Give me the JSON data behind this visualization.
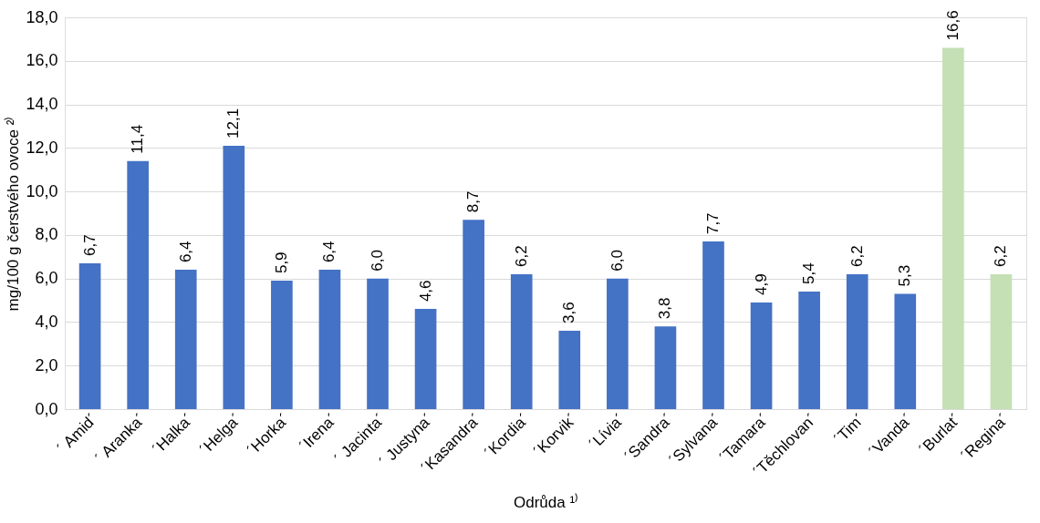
{
  "chart_data": {
    "type": "bar",
    "xlabel": "Odrůda ¹⁾",
    "ylabel": "mg/100 g čerstvého ovoce ²⁾",
    "categories": [
      "´ Amid´",
      "´ Aranka´",
      "´Halka´",
      "´Helga´",
      "´Horka´",
      "´Irena´",
      "´ Jacinta´",
      "´ Justyna´",
      "´Kasandra´",
      "´Kordia´",
      "´Korvik´",
      "´Lívia´",
      "´Sandra´",
      "´Sylvana´",
      "´Tamara´",
      "´Těchlovan´",
      "´Tim´",
      "´Vanda´",
      "´Burlat´",
      "´Regina´"
    ],
    "values": [
      6.7,
      11.4,
      6.4,
      12.1,
      5.9,
      6.4,
      6.0,
      4.6,
      8.7,
      6.2,
      3.6,
      6.0,
      3.8,
      7.7,
      4.9,
      5.4,
      6.2,
      5.3,
      16.6,
      6.2
    ],
    "value_labels": [
      "6,7",
      "11,4",
      "6,4",
      "12,1",
      "5,9",
      "6,4",
      "6,0",
      "4,6",
      "8,7",
      "6,2",
      "3,6",
      "6,0",
      "3,8",
      "7,7",
      "4,9",
      "5,4",
      "6,2",
      "5,3",
      "16,6",
      "6,2"
    ],
    "colors": [
      "#4472c4",
      "#4472c4",
      "#4472c4",
      "#4472c4",
      "#4472c4",
      "#4472c4",
      "#4472c4",
      "#4472c4",
      "#4472c4",
      "#4472c4",
      "#4472c4",
      "#4472c4",
      "#4472c4",
      "#4472c4",
      "#4472c4",
      "#4472c4",
      "#4472c4",
      "#4472c4",
      "#c5e0b4",
      "#c5e0b4"
    ],
    "ylim": [
      0,
      18
    ],
    "yticks": [
      {
        "value": 0,
        "label": "0,0"
      },
      {
        "value": 2,
        "label": "2,0"
      },
      {
        "value": 4,
        "label": "4,0"
      },
      {
        "value": 6,
        "label": "6,0"
      },
      {
        "value": 8,
        "label": "8,0"
      },
      {
        "value": 10,
        "label": "10,0"
      },
      {
        "value": 12,
        "label": "12,0"
      },
      {
        "value": 14,
        "label": "14,0"
      },
      {
        "value": 16,
        "label": "16,0"
      },
      {
        "value": 18,
        "label": "18,0"
      }
    ],
    "grid": "y"
  }
}
